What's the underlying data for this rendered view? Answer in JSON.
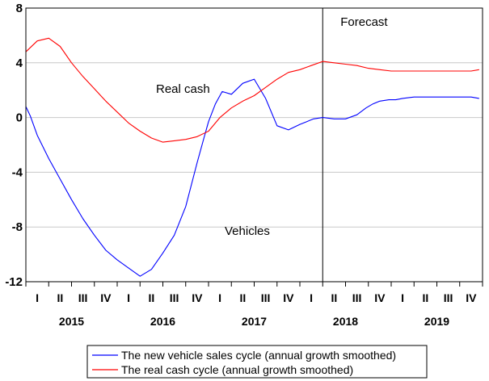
{
  "chart_data": {
    "type": "line",
    "title": "",
    "xlabel": "",
    "ylabel": "",
    "ylim": [
      -12,
      8
    ],
    "yticks": [
      8,
      4,
      0,
      -4,
      -8,
      -12
    ],
    "grid": true,
    "quarter_labels": [
      "I",
      "II",
      "III",
      "IV"
    ],
    "years": [
      "2015",
      "2016",
      "2017",
      "2018",
      "2019"
    ],
    "x_start": "2015Q1",
    "x_end": "2019Q4",
    "forecast_from": "2018Q2",
    "annotations": [
      {
        "text": "Forecast"
      },
      {
        "text": "Real cash"
      },
      {
        "text": "Vehicles"
      }
    ],
    "legend_position": "bottom",
    "series": [
      {
        "name": "The new vehicle sales cycle (annual growth smoothed)",
        "color": "#0000ff",
        "t": [
          0.0,
          0.2,
          0.5,
          1.0,
          1.5,
          2.0,
          2.5,
          3.0,
          3.5,
          4.0,
          4.5,
          5.0,
          5.5,
          6.0,
          6.5,
          7.0,
          7.5,
          7.8,
          8.0,
          8.3,
          8.6,
          9.0,
          9.5,
          10.0,
          10.5,
          11.0,
          11.5,
          12.0,
          12.3,
          12.6,
          13.0,
          13.5,
          14.0,
          14.5,
          14.9,
          15.2,
          15.5,
          15.9,
          16.2,
          16.5,
          17.0,
          17.5,
          18.0,
          18.5,
          19.0,
          19.5,
          19.85
        ],
        "values": [
          0.8,
          0.1,
          -1.3,
          -3.0,
          -4.5,
          -6.0,
          -7.4,
          -8.6,
          -9.7,
          -10.4,
          -11.0,
          -11.6,
          -11.1,
          -9.9,
          -8.6,
          -6.5,
          -3.3,
          -1.5,
          -0.3,
          1.0,
          1.9,
          1.7,
          2.5,
          2.8,
          1.4,
          -0.6,
          -0.9,
          -0.5,
          -0.3,
          -0.1,
          -0.0,
          -0.1,
          -0.1,
          0.2,
          0.7,
          1.0,
          1.2,
          1.3,
          1.3,
          1.4,
          1.5,
          1.5,
          1.5,
          1.5,
          1.5,
          1.5,
          1.4
        ]
      },
      {
        "name": "The real cash cycle (annual growth smoothed)",
        "color": "#ff0000",
        "t": [
          0.0,
          0.5,
          1.0,
          1.5,
          2.0,
          2.5,
          3.0,
          3.5,
          4.0,
          4.5,
          5.0,
          5.5,
          6.0,
          6.5,
          7.0,
          7.5,
          8.0,
          8.5,
          9.0,
          9.5,
          10.0,
          10.5,
          11.0,
          11.5,
          12.0,
          12.5,
          13.0,
          13.5,
          14.0,
          14.5,
          15.0,
          15.5,
          16.0,
          16.5,
          17.0,
          17.5,
          18.0,
          18.5,
          19.0,
          19.5,
          19.85
        ],
        "values": [
          4.8,
          5.6,
          5.8,
          5.2,
          4.0,
          3.0,
          2.1,
          1.2,
          0.4,
          -0.4,
          -1.0,
          -1.5,
          -1.8,
          -1.7,
          -1.6,
          -1.4,
          -1.0,
          0.0,
          0.7,
          1.2,
          1.6,
          2.2,
          2.8,
          3.3,
          3.5,
          3.8,
          4.1,
          4.0,
          3.9,
          3.8,
          3.6,
          3.5,
          3.4,
          3.4,
          3.4,
          3.4,
          3.4,
          3.4,
          3.4,
          3.4,
          3.5
        ]
      }
    ]
  }
}
